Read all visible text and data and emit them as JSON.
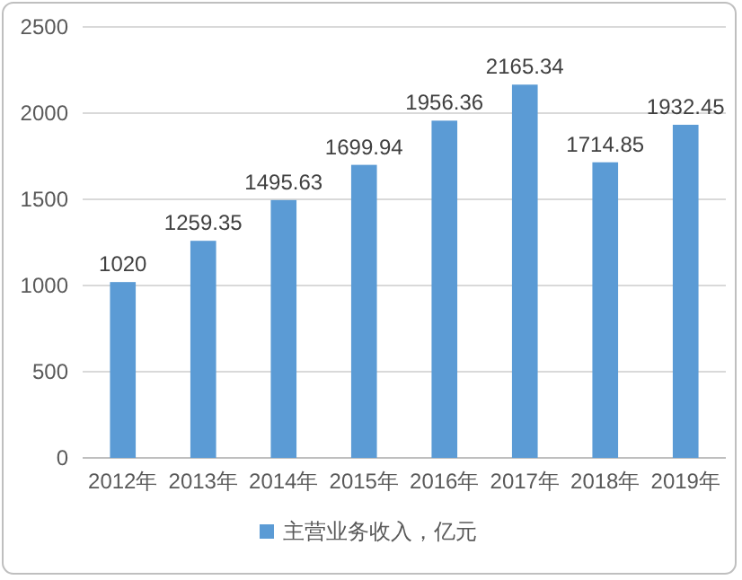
{
  "chart_data": {
    "type": "bar",
    "categories": [
      "2012年",
      "2013年",
      "2014年",
      "2015年",
      "2016年",
      "2017年",
      "2018年",
      "2019年"
    ],
    "series": [
      {
        "name": "主营业务收入，亿元",
        "color": "#5b9bd5",
        "values": [
          1020,
          1259.35,
          1495.63,
          1699.94,
          1956.36,
          2165.34,
          1714.85,
          1932.45
        ]
      }
    ],
    "ylim": [
      0,
      2500
    ],
    "yticks": [
      0,
      500,
      1000,
      1500,
      2000,
      2500
    ],
    "grid": "y",
    "legend": "bottom",
    "data_labels": true
  }
}
